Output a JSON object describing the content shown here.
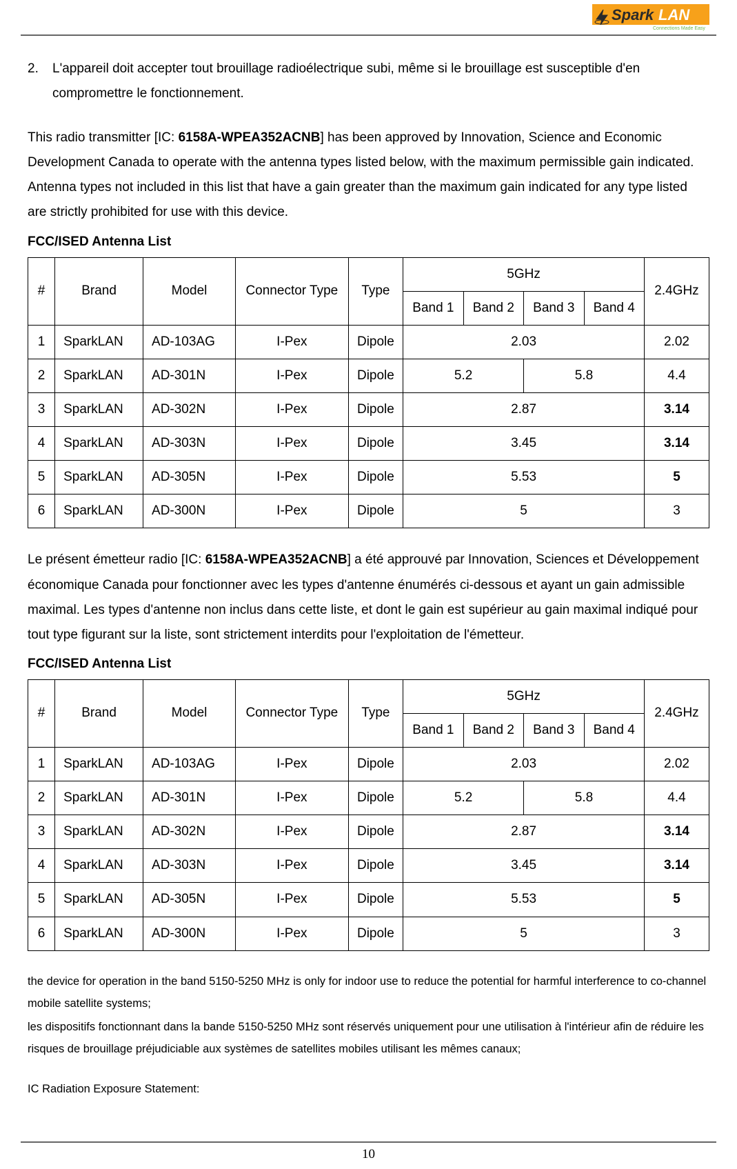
{
  "logo": {
    "text_main": "Spark",
    "text_sub": "LAN",
    "tagline": "Connections Made Easy",
    "bg_color": "#f7a11a",
    "text_color_main": "#2a2a2a",
    "tagline_color": "#6db54a",
    "stroke_color": "#3a3a3a"
  },
  "list_item": {
    "number": "2.",
    "text": "L'appareil doit accepter tout brouillage radioélectrique subi, même si le brouillage est susceptible d'en compromettre le fonctionnement."
  },
  "para1_pre": "This radio transmitter [IC: ",
  "para1_bold": "6158A-WPEA352ACNB",
  "para1_post": "] has been approved by Innovation, Science and Economic Development Canada to operate with the antenna types listed below, with the maximum permissible gain indicated. Antenna types not included in this list that have a gain greater than the maximum gain indicated for any type listed are strictly prohibited for use with this device.",
  "table_title": "FCC/ISED Antenna List",
  "headers": {
    "num": "#",
    "brand": "Brand",
    "model": "Model",
    "connector": "Connector Type",
    "type": "Type",
    "ghz5": "5GHz",
    "band1": "Band 1",
    "band2": "Band 2",
    "band3": "Band 3",
    "band4": "Band 4",
    "ghz24": "2.4GHz"
  },
  "rows": [
    {
      "n": "1",
      "brand": "SparkLAN",
      "model": "AD-103AG",
      "conn": "I-Pex",
      "type": "Dipole",
      "b": [
        {
          "span": 4,
          "val": "2.03",
          "bold": false
        }
      ],
      "g24": "2.02",
      "g24_bold": false
    },
    {
      "n": "2",
      "brand": "SparkLAN",
      "model": "AD-301N",
      "conn": "I-Pex",
      "type": "Dipole",
      "b": [
        {
          "span": 2,
          "val": "5.2",
          "bold": false
        },
        {
          "span": 2,
          "val": "5.8",
          "bold": false
        }
      ],
      "g24": "4.4",
      "g24_bold": false
    },
    {
      "n": "3",
      "brand": "SparkLAN",
      "model": "AD-302N",
      "conn": "I-Pex",
      "type": "Dipole",
      "b": [
        {
          "span": 4,
          "val": "2.87",
          "bold": false
        }
      ],
      "g24": "3.14",
      "g24_bold": true
    },
    {
      "n": "4",
      "brand": "SparkLAN",
      "model": "AD-303N",
      "conn": "I-Pex",
      "type": "Dipole",
      "b": [
        {
          "span": 4,
          "val": "3.45",
          "bold": false
        }
      ],
      "g24": "3.14",
      "g24_bold": true
    },
    {
      "n": "5",
      "brand": "SparkLAN",
      "model": "AD-305N",
      "conn": "I-Pex",
      "type": "Dipole",
      "b": [
        {
          "span": 4,
          "val": "5.53",
          "bold": false
        }
      ],
      "g24": "5",
      "g24_bold": true
    },
    {
      "n": "6",
      "brand": "SparkLAN",
      "model": "AD-300N",
      "conn": "I-Pex",
      "type": "Dipole",
      "b": [
        {
          "span": 4,
          "val": "5",
          "bold": false
        }
      ],
      "g24": "3",
      "g24_bold": false
    }
  ],
  "para2_pre": "Le présent émetteur radio [IC: ",
  "para2_bold": "6158A-WPEA352ACNB",
  "para2_post": "] a été approuvé par Innovation, Sciences et Développement économique Canada pour fonctionner avec les types d'antenne énumérés ci-dessous et ayant un gain admissible maximal. Les types d'antenne non inclus dans cette liste, et dont le gain est supérieur au gain maximal indiqué pour tout type figurant sur la liste, sont strictement interdits pour l'exploitation de l'émetteur.",
  "small1": "the device for operation in the band 5150-5250 MHz is only for indoor use to reduce the potential for harmful interference to co-channel mobile satellite systems;",
  "small2": "les dispositifs fonctionnant dans la bande 5150-5250 MHz sont réservés uniquement pour une utilisation à l'intérieur afin de réduire les risques de brouillage préjudiciable aux systèmes de satellites mobiles utilisant les mêmes canaux;",
  "small3": "IC Radiation Exposure Statement:",
  "page_number": "10"
}
